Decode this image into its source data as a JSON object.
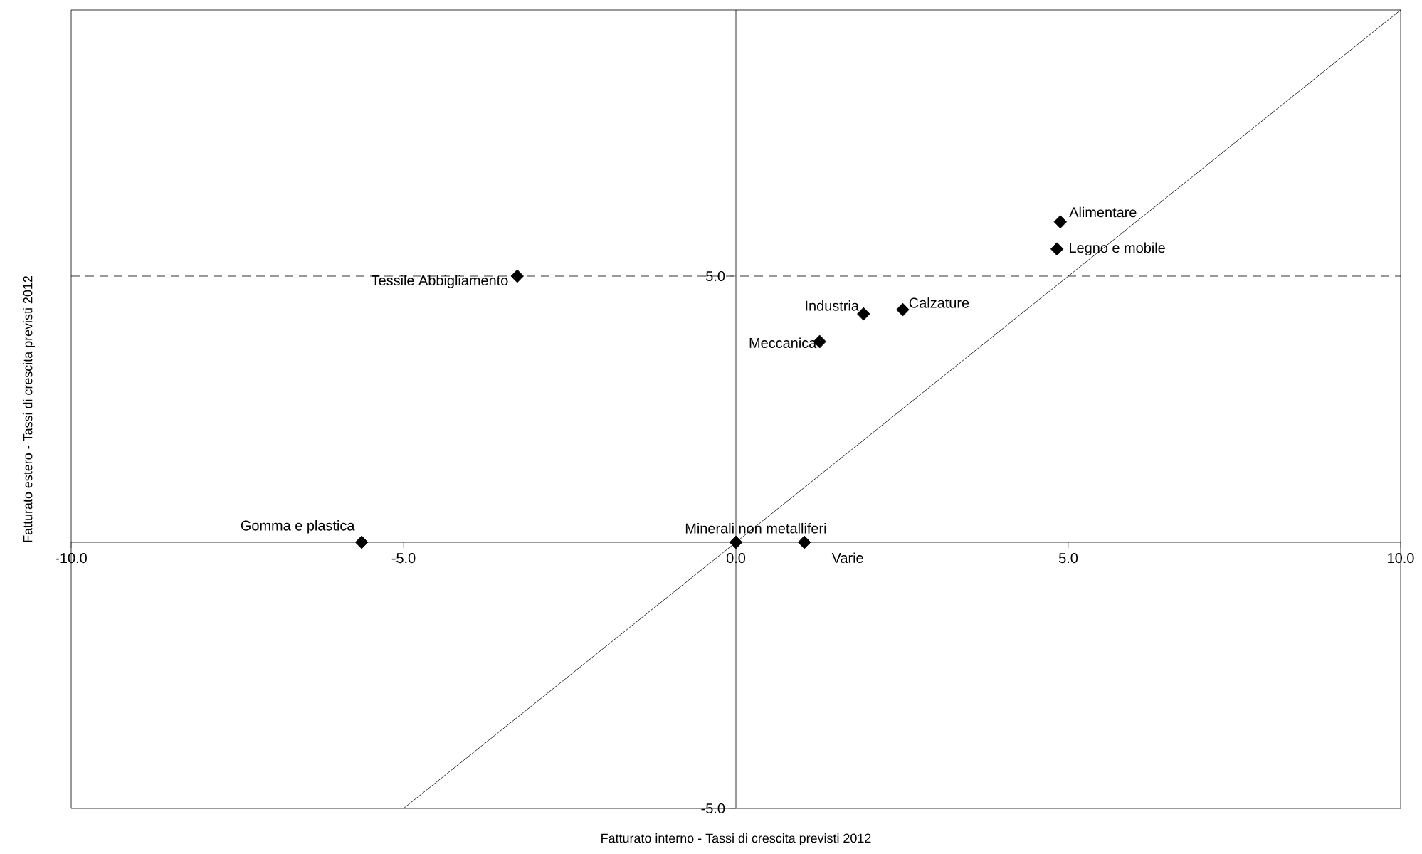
{
  "chart_data": {
    "type": "scatter",
    "xlabel": "Fatturato interno - Tassi di crescita previsti 2012",
    "ylabel": "Fatturato estero - Tassi di crescita previsti 2012",
    "xlim": [
      -10,
      10
    ],
    "ylim": [
      -5,
      10
    ],
    "xticks": [
      {
        "value": -10,
        "label": "-10.0"
      },
      {
        "value": -5,
        "label": "-5.0"
      },
      {
        "value": 0,
        "label": "0.0"
      },
      {
        "value": 5,
        "label": "5.0"
      },
      {
        "value": 10,
        "label": "10.0"
      }
    ],
    "yticks": [
      {
        "value": -5,
        "label": "-5.0"
      },
      {
        "value": 5,
        "label": "5.0"
      }
    ],
    "marker": "diamond",
    "series": [
      {
        "color": "#000000",
        "x": [
          4.88,
          4.83,
          -3.29,
          1.92,
          2.51,
          1.26,
          -5.63,
          0,
          1.03
        ],
        "values": [
          6.02,
          5.51,
          5.0,
          4.29,
          4.37,
          3.77,
          0,
          0,
          0
        ]
      },
      {
        "type": "line",
        "marker": "none",
        "color": "#000000",
        "x": [
          -5,
          10
        ],
        "values": [
          -5,
          10
        ]
      }
    ],
    "ref_lines": [
      {
        "axis": "y",
        "value": 5,
        "line_style": "dashed",
        "color": "#000000"
      }
    ],
    "annotations": [
      {
        "text": "Alimentare",
        "x": 4.88,
        "y": 6.02
      },
      {
        "text": "Legno e mobile",
        "x": 4.83,
        "y": 5.51
      },
      {
        "text": "Tessile Abbigliamento",
        "x": -3.29,
        "y": 5.0
      },
      {
        "text": "Industria",
        "x": 1.92,
        "y": 4.29
      },
      {
        "text": "Calzature",
        "x": 2.51,
        "y": 4.37
      },
      {
        "text": "Meccanica",
        "x": 1.26,
        "y": 3.77
      },
      {
        "text": "Gomma e plastica",
        "x": -5.63,
        "y": 0
      },
      {
        "text": "Minerali non metalliferi",
        "x": 0,
        "y": 0
      },
      {
        "text": "Varie",
        "x": 1.03,
        "y": 0
      }
    ]
  }
}
